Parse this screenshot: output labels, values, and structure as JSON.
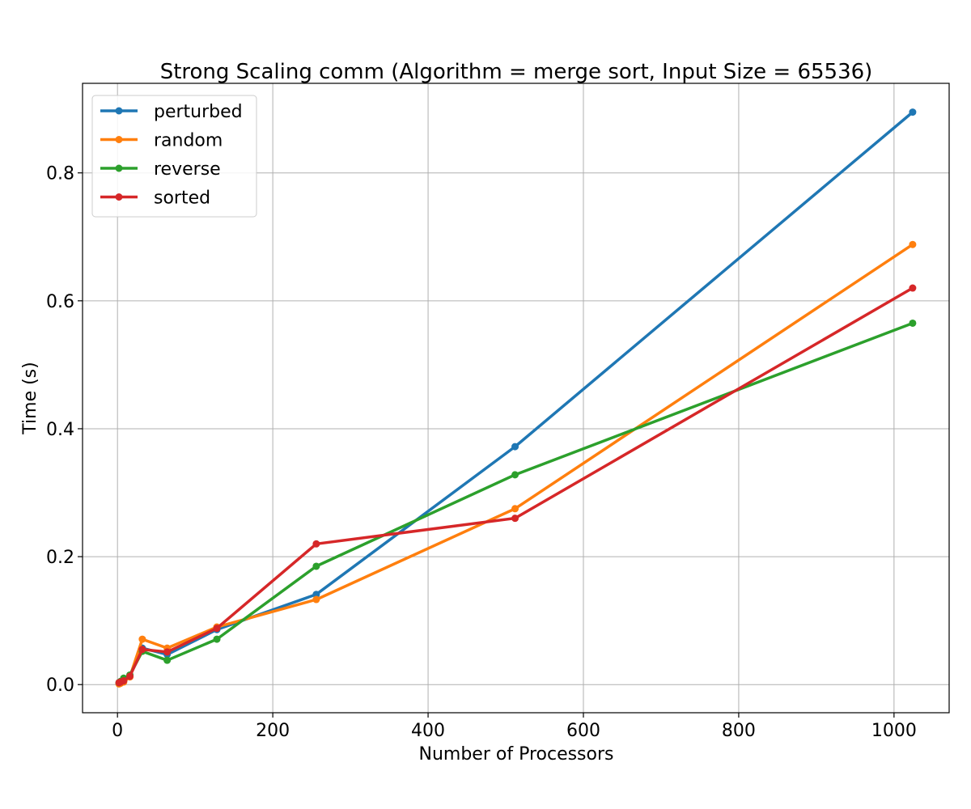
{
  "chart_data": {
    "type": "line",
    "title": "Strong Scaling comm (Algorithm = merge sort, Input Size = 65536)",
    "xlabel": "Number of Processors",
    "ylabel": "Time (s)",
    "xlim": [
      -45,
      1071
    ],
    "ylim": [
      -0.044,
      0.94
    ],
    "xticks": [
      0,
      200,
      400,
      600,
      800,
      1000
    ],
    "yticks": [
      0.0,
      0.2,
      0.4,
      0.6,
      0.8
    ],
    "xtick_labels": [
      "0",
      "200",
      "400",
      "600",
      "800",
      "1000"
    ],
    "ytick_labels": [
      "0.0",
      "0.2",
      "0.4",
      "0.6",
      "0.8"
    ],
    "grid": true,
    "legend_position": "upper-left",
    "x": [
      2,
      4,
      8,
      16,
      32,
      64,
      128,
      256,
      512,
      1024
    ],
    "series": [
      {
        "name": "perturbed",
        "color": "#1f77b4",
        "values": [
          0.002,
          0.003,
          0.006,
          0.014,
          0.057,
          0.047,
          0.086,
          0.141,
          0.372,
          0.895
        ]
      },
      {
        "name": "random",
        "color": "#ff7f0e",
        "values": [
          0.001,
          0.002,
          0.004,
          0.012,
          0.071,
          0.057,
          0.09,
          0.133,
          0.275,
          0.688
        ]
      },
      {
        "name": "reverse",
        "color": "#2ca02c",
        "values": [
          0.003,
          0.005,
          0.01,
          0.015,
          0.052,
          0.038,
          0.071,
          0.185,
          0.328,
          0.565
        ]
      },
      {
        "name": "sorted",
        "color": "#d62728",
        "values": [
          0.003,
          0.004,
          0.006,
          0.013,
          0.055,
          0.051,
          0.088,
          0.22,
          0.26,
          0.62
        ]
      }
    ]
  }
}
